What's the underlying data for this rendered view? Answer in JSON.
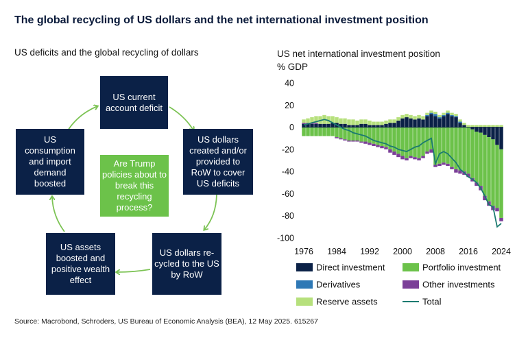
{
  "header": {
    "title": "The global recycling of US dollars and the net international investment position",
    "left_subtitle": "US deficits and the global recycling of dollars",
    "chart_title_line1": "US net international investment position",
    "chart_title_line2": "% GDP"
  },
  "diagram": {
    "box_deficit": "US current account deficit",
    "box_created": "US dollars created and/or provided to RoW to cover US deficits",
    "box_recycled": "US dollars re-cycled to the US by RoW",
    "box_assets": "US assets boosted and positive wealth effect",
    "box_consumption": "US consumption and import demand boosted",
    "box_question": "Are Trump policies about to break this recycling process?"
  },
  "colors": {
    "navy": "#0b2147",
    "green": "#6cc24a",
    "light_green": "#b6e07c",
    "blue": "#2e78b5",
    "purple": "#7b3f98",
    "teal": "#1b7a70",
    "arrow": "#7cc354"
  },
  "chart_data": {
    "type": "bar",
    "stacked": true,
    "x_start": 1976,
    "x_end": 2024,
    "x_ticks": [
      "1976",
      "1984",
      "1992",
      "2000",
      "2008",
      "2016",
      "2024"
    ],
    "y_ticks": [
      "40",
      "20",
      "0",
      "-20",
      "-40",
      "-60",
      "-80",
      "-100"
    ],
    "ylim": [
      -100,
      40
    ],
    "grid": false,
    "legend_position": "bottom",
    "series": [
      {
        "name": "Direct investment",
        "color": "#0b2147",
        "values": [
          3,
          3,
          3,
          3,
          3,
          3,
          3,
          4,
          4,
          3,
          3,
          2,
          2,
          2,
          3,
          3,
          2,
          2,
          2,
          2,
          3,
          4,
          4,
          6,
          8,
          9,
          8,
          7,
          8,
          7,
          10,
          12,
          10,
          8,
          10,
          12,
          10,
          9,
          4,
          2,
          0,
          -2,
          -4,
          -5,
          -7,
          -9,
          -11,
          -16,
          -20
        ]
      },
      {
        "name": "Portfolio investment",
        "color": "#6cc24a",
        "values": [
          -8,
          -8,
          -8,
          -8,
          -8,
          -8,
          -8,
          -8,
          -9,
          -10,
          -11,
          -12,
          -12,
          -12,
          -13,
          -13,
          -14,
          -15,
          -16,
          -17,
          -18,
          -20,
          -22,
          -24,
          -26,
          -28,
          -26,
          -27,
          -28,
          -26,
          -22,
          -20,
          -34,
          -33,
          -32,
          -33,
          -36,
          -38,
          -39,
          -40,
          -42,
          -44,
          -46,
          -48,
          -55,
          -58,
          -60,
          -57,
          -62
        ]
      },
      {
        "name": "Derivatives",
        "color": "#2e78b5",
        "values": [
          0,
          0,
          0,
          0,
          0,
          0,
          0,
          0,
          0,
          0,
          0,
          0,
          0,
          0,
          0,
          0,
          0,
          0,
          0,
          0,
          0,
          0,
          0,
          0,
          0,
          0,
          0,
          0,
          0,
          0,
          1,
          1,
          2,
          1,
          1,
          1,
          1,
          1,
          1,
          0,
          0,
          0,
          0,
          0,
          0,
          0,
          0,
          0,
          0
        ]
      },
      {
        "name": "Other investments",
        "color": "#7b3f98",
        "values": [
          1,
          1,
          1,
          1,
          0,
          0,
          0,
          0,
          -1,
          -1,
          -1,
          -1,
          -1,
          -1,
          -1,
          -2,
          -2,
          -2,
          -2,
          -2,
          -2,
          -3,
          -3,
          -3,
          -3,
          -2,
          -2,
          -2,
          -2,
          -2,
          -2,
          -3,
          -2,
          -2,
          -2,
          -2,
          -2,
          -3,
          -3,
          -3,
          -3,
          -3,
          -3,
          -4,
          -4,
          -4,
          -4,
          -3,
          -3
        ]
      },
      {
        "name": "Reserve assets",
        "color": "#b6e07c",
        "values": [
          3,
          4,
          5,
          6,
          7,
          8,
          7,
          6,
          5,
          5,
          5,
          5,
          5,
          4,
          4,
          4,
          4,
          3,
          3,
          3,
          3,
          3,
          3,
          3,
          3,
          3,
          3,
          3,
          3,
          3,
          2,
          2,
          2,
          2,
          2,
          2,
          2,
          2,
          2,
          2,
          2,
          2,
          2,
          2,
          2,
          2,
          2,
          2,
          2
        ]
      },
      {
        "name": "Total",
        "type": "line",
        "color": "#1b7a70",
        "values": [
          2,
          3,
          4,
          5,
          6,
          7,
          6,
          4,
          2,
          0,
          -2,
          -3,
          -5,
          -6,
          -7,
          -8,
          -10,
          -12,
          -13,
          -14,
          -15,
          -17,
          -18,
          -20,
          -21,
          -22,
          -20,
          -18,
          -17,
          -14,
          -12,
          -10,
          -33,
          -24,
          -22,
          -24,
          -28,
          -32,
          -38,
          -41,
          -45,
          -47,
          -50,
          -55,
          -62,
          -70,
          -72,
          -90,
          -87
        ]
      }
    ]
  },
  "source": "Source: Macrobond, Schroders, US Bureau of Economic Analysis (BEA), 12 May 2025. 615267"
}
